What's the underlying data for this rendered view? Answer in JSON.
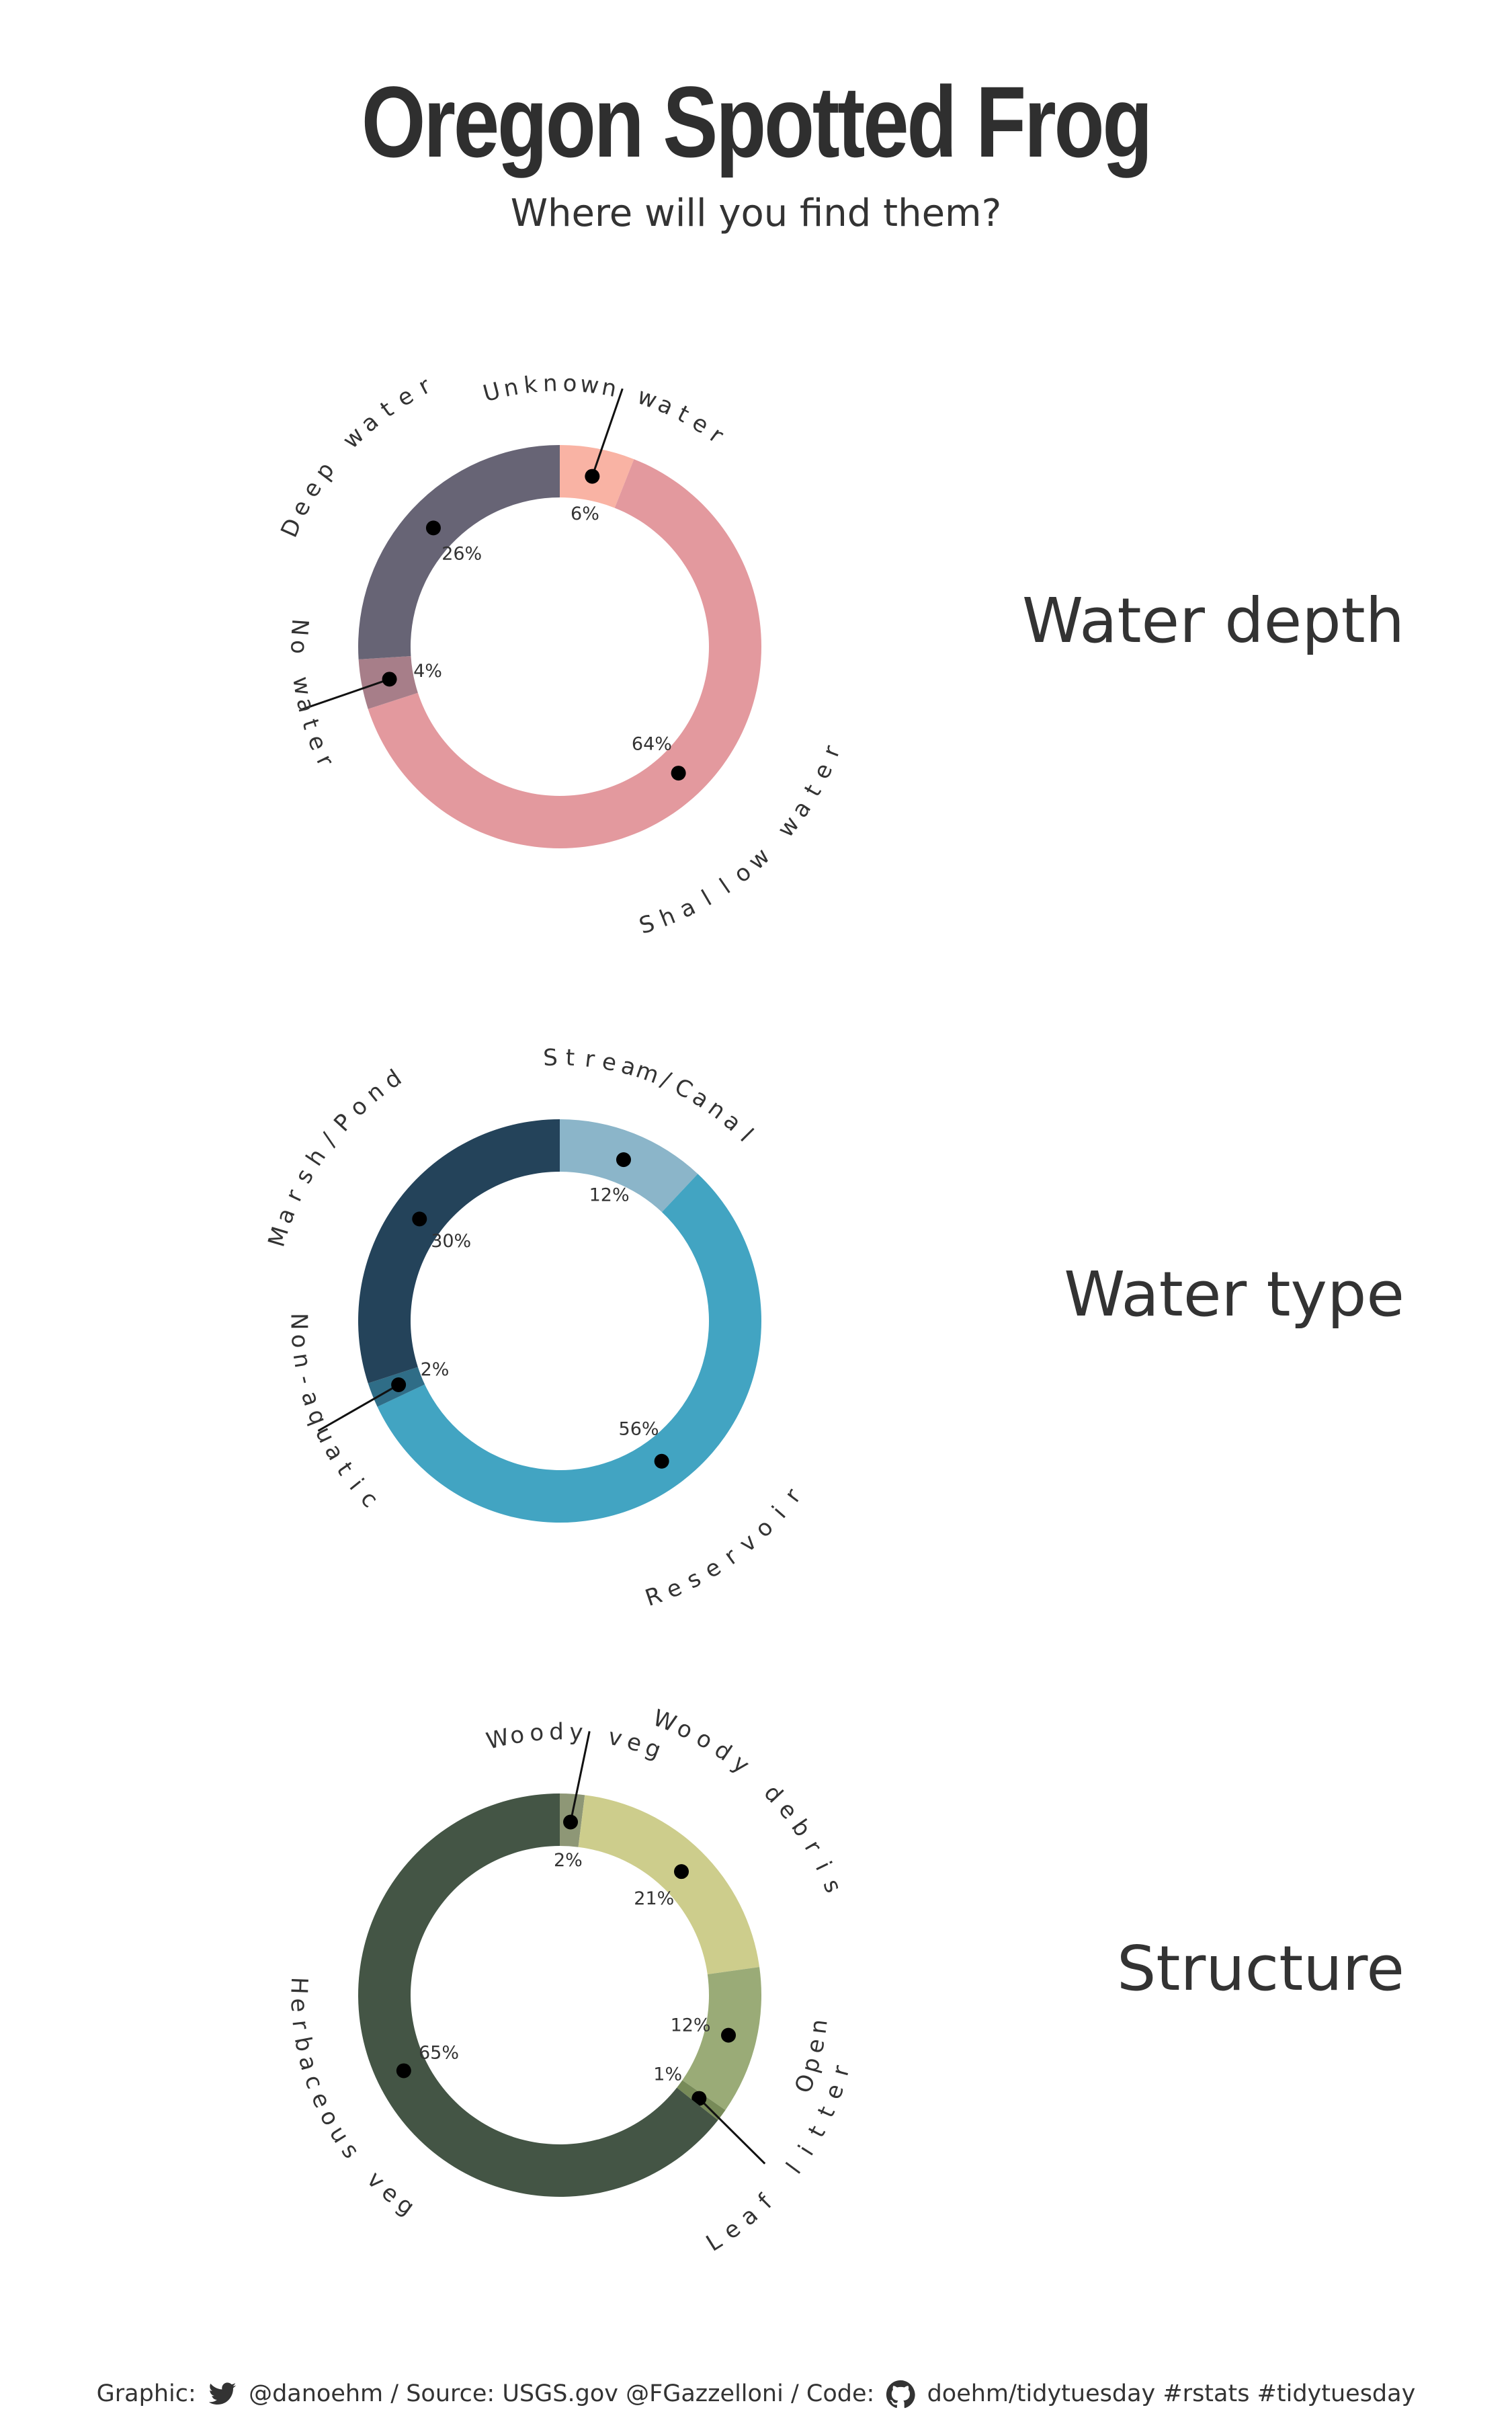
{
  "header": {
    "title": "Oregon Spotted Frog",
    "subtitle": "Where will you find them?"
  },
  "chart_data": [
    {
      "type": "pie",
      "subtype": "donut",
      "title": "Water depth",
      "slices": [
        {
          "name": "Unknown water",
          "value": 6,
          "label": "6%",
          "color": "#F9B3A4"
        },
        {
          "name": "Shallow water",
          "value": 64,
          "label": "64%",
          "color": "#E3999E"
        },
        {
          "name": "No water",
          "value": 4,
          "label": "4%",
          "color": "#A77E89"
        },
        {
          "name": "Deep water",
          "value": 26,
          "label": "26%",
          "color": "#676475"
        }
      ]
    },
    {
      "type": "pie",
      "subtype": "donut",
      "title": "Water type",
      "slices": [
        {
          "name": "Stream/Canal",
          "value": 12,
          "label": "12%",
          "color": "#8BB5C9"
        },
        {
          "name": "Reservoir",
          "value": 56,
          "label": "56%",
          "color": "#42A4C2"
        },
        {
          "name": "Non-aquatic",
          "value": 2,
          "label": "2%",
          "color": "#2F6D87"
        },
        {
          "name": "Marsh/Pond",
          "value": 30,
          "label": "30%",
          "color": "#24435A"
        }
      ]
    },
    {
      "type": "pie",
      "subtype": "donut",
      "title": "Structure",
      "slices": [
        {
          "name": "Woody veg",
          "value": 2,
          "label": "2%",
          "color": "#8E9776"
        },
        {
          "name": "Woody debris",
          "value": 21,
          "label": "21%",
          "color": "#CDCD8C"
        },
        {
          "name": "Open",
          "value": 12,
          "label": "12%",
          "color": "#9AAB77"
        },
        {
          "name": "Leaf litter",
          "value": 1,
          "label": "1%",
          "color": "#778A58"
        },
        {
          "name": "Herbaceous veg",
          "value": 65,
          "label": "65%",
          "color": "#445545"
        }
      ]
    }
  ],
  "footer": {
    "graphic_label": "Graphic:",
    "author": "@danoehm / Source: USGS.gov @FGazzelloni / Code:",
    "code": "doehm/tidytuesday #rstats #tidytuesday",
    "twitter_icon": "twitter-bird-icon",
    "github_icon": "github-icon"
  }
}
